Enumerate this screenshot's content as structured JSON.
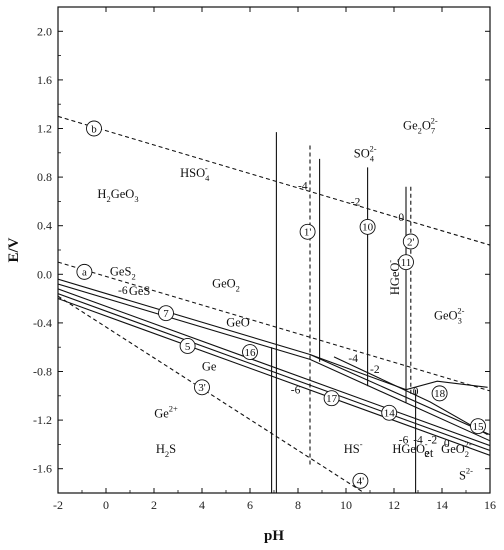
{
  "chart_data": {
    "type": "line",
    "xlabel": "pH",
    "ylabel": "E/V",
    "xlim": [
      -2,
      16
    ],
    "ylim": [
      -1.8,
      2.2
    ],
    "x_ticks": [
      "-2",
      "0",
      "2",
      "4",
      "6",
      "8",
      "10",
      "12",
      "14",
      "16"
    ],
    "y_ticks": [
      "2.0",
      "1.6",
      "1.2",
      "0.8",
      "0.4",
      "0.0",
      "-0.4",
      "-0.8",
      "-1.2",
      "-1.6"
    ],
    "grid": false,
    "legend": "none",
    "series": [
      {
        "style": "dashed",
        "x": [
          -2,
          16
        ],
        "y": [
          1.3,
          0.24
        ]
      },
      {
        "style": "dashed",
        "x": [
          -2,
          16
        ],
        "y": [
          0.1,
          -0.96
        ]
      },
      {
        "style": "dashed",
        "x": [
          -2,
          11
        ],
        "y": [
          -0.18,
          -1.83
        ]
      },
      {
        "style": "solid",
        "x": [
          -2,
          8.5,
          16
        ],
        "y": [
          -0.04,
          -0.66,
          -1.32
        ]
      },
      {
        "style": "solid",
        "x": [
          -2,
          8.5,
          16
        ],
        "y": [
          -0.08,
          -0.7,
          -1.37
        ]
      },
      {
        "style": "solid",
        "x": [
          -2,
          16
        ],
        "y": [
          -0.12,
          -1.41
        ]
      },
      {
        "style": "solid",
        "x": [
          -2,
          16
        ],
        "y": [
          -0.16,
          -1.45
        ]
      },
      {
        "style": "solid",
        "x": [
          -2,
          16
        ],
        "y": [
          -0.2,
          -1.49
        ]
      },
      {
        "style": "solid",
        "x": [
          7.1,
          7.1
        ],
        "y": [
          1.17,
          -1.82
        ]
      },
      {
        "style": "solid",
        "x": [
          8.9,
          8.9
        ],
        "y": [
          0.95,
          -0.72
        ]
      },
      {
        "style": "solid",
        "x": [
          10.9,
          10.9
        ],
        "y": [
          0.88,
          -0.92
        ]
      },
      {
        "style": "solid",
        "x": [
          12.5,
          12.5
        ],
        "y": [
          0.72,
          -1.06
        ]
      },
      {
        "style": "solid",
        "x": [
          12.9,
          12.9
        ],
        "y": [
          -0.95,
          -1.82
        ]
      },
      {
        "style": "solid",
        "x": [
          6.9,
          6.9
        ],
        "y": [
          -0.6,
          -1.82
        ]
      },
      {
        "style": "dashed",
        "x": [
          8.5,
          8.5
        ],
        "y": [
          1.06,
          -1.58
        ]
      },
      {
        "style": "dashed",
        "x": [
          12.7,
          12.7
        ],
        "y": [
          0.72,
          -1.0
        ]
      },
      {
        "style": "solid",
        "x": [
          8.5,
          12.5,
          13.8,
          15.9
        ],
        "y": [
          -0.66,
          -0.95,
          -0.88,
          -0.93
        ]
      },
      {
        "style": "solid",
        "x": [
          9.5,
          13.5,
          15.9
        ],
        "y": [
          -0.68,
          -1.05,
          -1.32
        ]
      }
    ],
    "annotations": {
      "regions": [
        {
          "text": "Ge",
          "sub": "2",
          "sup": "",
          "after": "O",
          "sub2": "7",
          "sup2": "2-",
          "x": 13.1,
          "y": 1.19
        },
        {
          "text": "SO",
          "sub": "4",
          "sup": "2-",
          "x": 10.8,
          "y": 0.96
        },
        {
          "text": "HSO",
          "sub": "4",
          "sup": "-",
          "x": 3.7,
          "y": 0.8
        },
        {
          "text": "H",
          "sub": "2",
          "sup": "",
          "after": "GeO",
          "sub2": "3",
          "x": 0.5,
          "y": 0.63
        },
        {
          "text": "GeS",
          "sub": "2",
          "sup": "",
          "x": 0.7,
          "y": -0.01
        },
        {
          "text": "GeS",
          "sub": "",
          "sup": "",
          "x": 1.4,
          "y": -0.17
        },
        {
          "text": "GeO",
          "sub": "2",
          "sup": "",
          "x": 5.0,
          "y": -0.11
        },
        {
          "text": "GeO",
          "sub": "",
          "sup": "",
          "x": 5.5,
          "y": -0.43
        },
        {
          "text": "Ge",
          "sub": "",
          "sup": "",
          "x": 4.3,
          "y": -0.79
        },
        {
          "text": "GeO",
          "sub": "3",
          "sup": "2-",
          "x": 14.3,
          "y": -0.37
        },
        {
          "text": "Ge",
          "sub": "",
          "sup": "2+",
          "x": 2.5,
          "y": -1.18
        },
        {
          "text": "H",
          "sub": "2",
          "sup": "",
          "after": "S",
          "x": 2.5,
          "y": -1.47
        },
        {
          "text": "HS",
          "sub": "",
          "sup": "-",
          "x": 10.3,
          "y": -1.47
        },
        {
          "text": "HGeO",
          "sub": "2",
          "sup": "-",
          "x": 12.7,
          "y": -1.47
        },
        {
          "text": "GeO",
          "sub": "2",
          "sup": "2-",
          "x": 14.6,
          "y": -1.47
        },
        {
          "text": "S",
          "sub": "",
          "sup": "2-",
          "x": 15.0,
          "y": -1.69
        }
      ],
      "vertical_regions": [
        {
          "text": "HGeO",
          "sub": "3",
          "sup": "-",
          "x": 12.2,
          "y": -0.02
        }
      ],
      "numbers": [
        {
          "text": "-4",
          "x": 8.2,
          "y": 0.73
        },
        {
          "text": "-2",
          "x": 10.4,
          "y": 0.6
        },
        {
          "text": "0",
          "x": 12.3,
          "y": 0.47
        },
        {
          "text": "-6",
          "x": 0.7,
          "y": -0.13
        },
        {
          "text": "-4",
          "x": 10.3,
          "y": -0.69
        },
        {
          "text": "-2",
          "x": 11.2,
          "y": -0.78
        },
        {
          "text": "0",
          "x": 12.9,
          "y": -0.96
        },
        {
          "text": "-6",
          "x": 7.9,
          "y": -0.95
        },
        {
          "text": "-6",
          "x": 12.4,
          "y": -1.36
        },
        {
          "text": "-4",
          "x": 13.0,
          "y": -1.36
        },
        {
          "text": "-2",
          "x": 13.6,
          "y": -1.36
        },
        {
          "text": "0",
          "x": 14.2,
          "y": -1.39
        }
      ],
      "separators": [
        {
          "text": "et",
          "x": 13.45,
          "y": -1.47
        }
      ],
      "circled": [
        {
          "text": "b",
          "x": -0.5,
          "y": 1.2
        },
        {
          "text": "a",
          "x": -0.9,
          "y": 0.02
        },
        {
          "text": "1'",
          "x": 8.4,
          "y": 0.35
        },
        {
          "text": "10",
          "x": 10.9,
          "y": 0.39
        },
        {
          "text": "2'",
          "x": 12.7,
          "y": 0.27
        },
        {
          "text": "11",
          "x": 12.5,
          "y": 0.1
        },
        {
          "text": "7",
          "x": 2.5,
          "y": -0.32
        },
        {
          "text": "5",
          "x": 3.4,
          "y": -0.59
        },
        {
          "text": "16",
          "x": 6.0,
          "y": -0.64
        },
        {
          "text": "3'",
          "x": 4.0,
          "y": -0.93
        },
        {
          "text": "17",
          "x": 9.4,
          "y": -1.02
        },
        {
          "text": "14",
          "x": 11.8,
          "y": -1.14
        },
        {
          "text": "18",
          "x": 13.9,
          "y": -0.98
        },
        {
          "text": "15",
          "x": 15.5,
          "y": -1.25
        },
        {
          "text": "4'",
          "x": 10.6,
          "y": -1.7
        }
      ]
    }
  }
}
